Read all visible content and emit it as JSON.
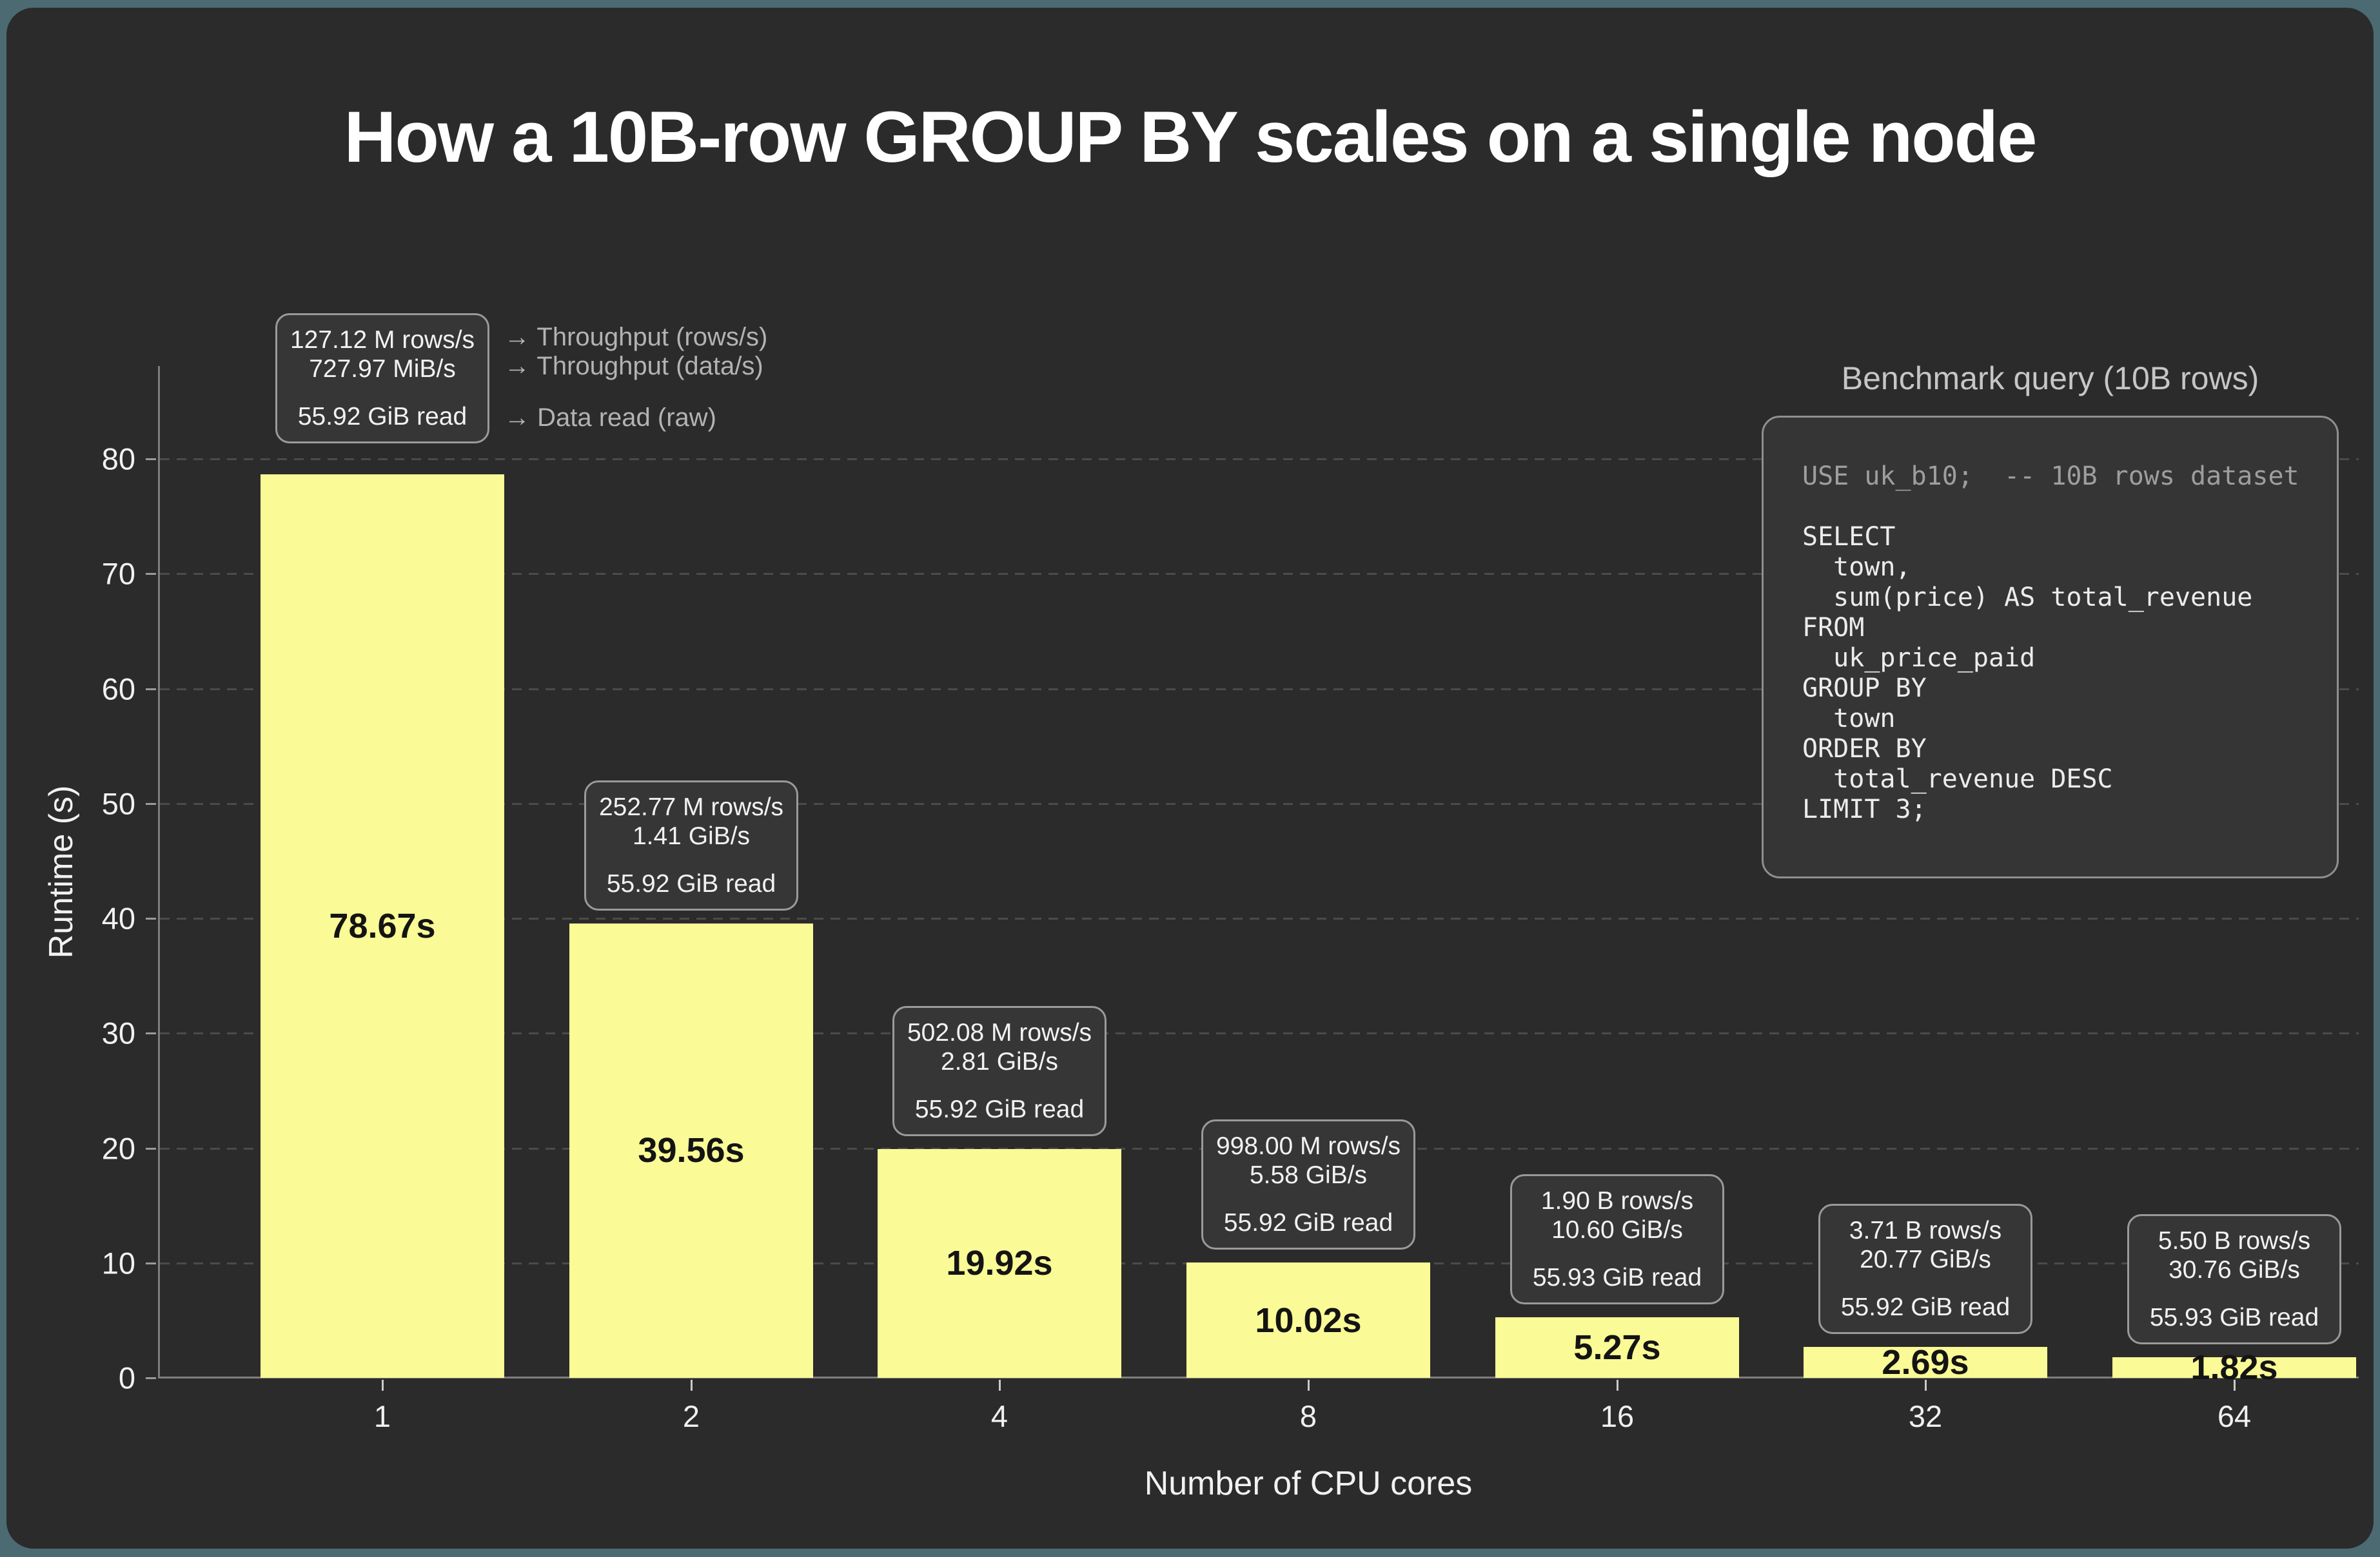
{
  "colors": {
    "frame": "#4C6A72",
    "panel_bg": "#2B2B2B",
    "bar_yellow": "#FAFA96",
    "grid": "#4B4B4B",
    "annotation_border": "#9A9A9A"
  },
  "title": "How a 10B-row GROUP BY scales on a single node",
  "legend": {
    "rows_label": "→ Throughput (rows/s)",
    "data_label": "→ Throughput (data/s)",
    "read_label": "→ Data read (raw)"
  },
  "query_panel": {
    "heading": "Benchmark query (10B rows)",
    "comment_line": "USE uk_b10;  -- 10B rows dataset",
    "sql_lines": [
      "SELECT",
      "  town,",
      "  sum(price) AS total_revenue",
      "FROM",
      "  uk_price_paid",
      "GROUP BY",
      "  town",
      "ORDER BY",
      "  total_revenue DESC",
      "LIMIT 3;"
    ]
  },
  "chart_data": {
    "type": "bar",
    "title": "How a 10B-row GROUP BY scales on a single node",
    "xlabel": "Number of CPU cores",
    "ylabel": "Runtime (s)",
    "ylim": [
      0,
      88
    ],
    "y_ticks": [
      0,
      10,
      20,
      30,
      40,
      50,
      60,
      70,
      80
    ],
    "grid": "dashed horizontal",
    "legend_position": "top-left",
    "categories": [
      "1",
      "2",
      "4",
      "8",
      "16",
      "32",
      "64"
    ],
    "values": [
      78.67,
      39.56,
      19.92,
      10.02,
      5.27,
      2.69,
      1.82
    ],
    "bar_labels": [
      "78.67s",
      "39.56s",
      "19.92s",
      "10.02s",
      "5.27s",
      "2.69s",
      "1.82s"
    ],
    "annotations": [
      {
        "rows_per_s": "127.12 M rows/s",
        "data_per_s": "727.97 MiB/s",
        "data_read": "55.92 GiB read"
      },
      {
        "rows_per_s": "252.77 M rows/s",
        "data_per_s": "1.41 GiB/s",
        "data_read": "55.92 GiB read"
      },
      {
        "rows_per_s": "502.08 M rows/s",
        "data_per_s": "2.81 GiB/s",
        "data_read": "55.92 GiB read"
      },
      {
        "rows_per_s": "998.00 M rows/s",
        "data_per_s": "5.58 GiB/s",
        "data_read": "55.92 GiB read"
      },
      {
        "rows_per_s": "1.90 B rows/s",
        "data_per_s": "10.60 GiB/s",
        "data_read": "55.93 GiB read"
      },
      {
        "rows_per_s": "3.71 B rows/s",
        "data_per_s": "20.77 GiB/s",
        "data_read": "55.92 GiB read"
      },
      {
        "rows_per_s": "5.50 B rows/s",
        "data_per_s": "30.76 GiB/s",
        "data_read": "55.93 GiB read"
      }
    ]
  }
}
